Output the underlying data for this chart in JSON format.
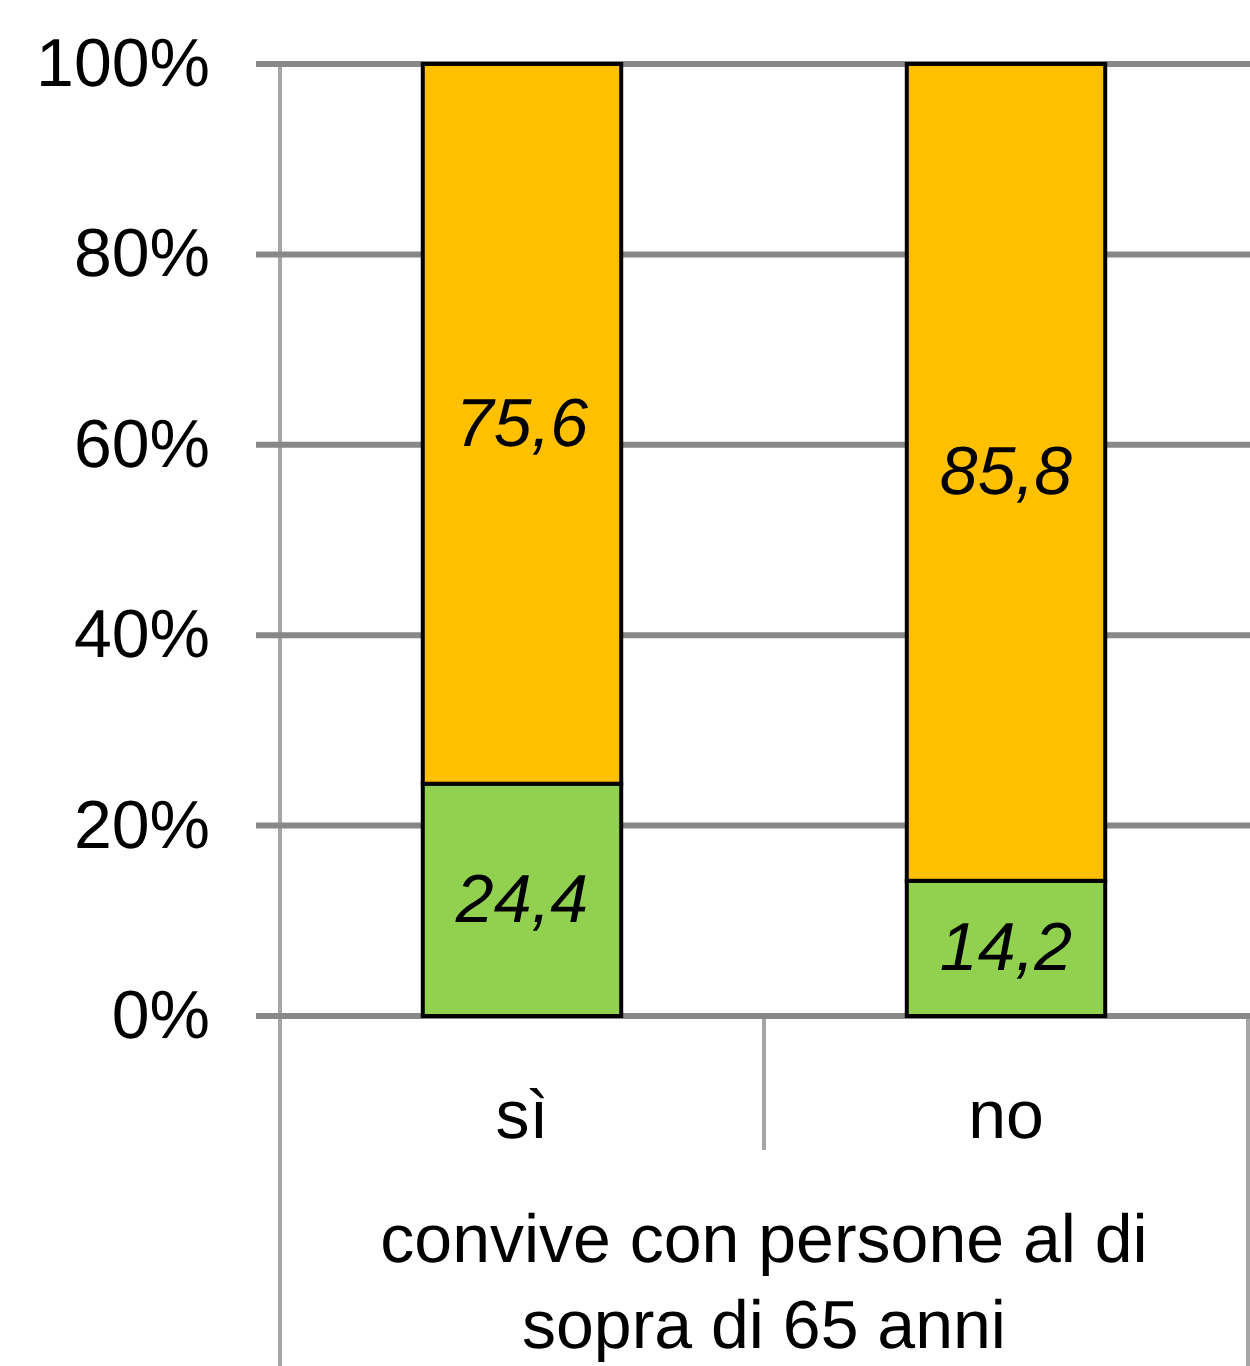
{
  "chart_data": {
    "type": "bar",
    "stacked": true,
    "categories": [
      "sì",
      "no"
    ],
    "series": [
      {
        "color": "#92d050",
        "values": [
          24.4,
          14.2
        ],
        "value_labels": [
          "24,4",
          "14,2"
        ]
      },
      {
        "color": "#ffc000",
        "values": [
          75.6,
          85.8
        ],
        "value_labels": [
          "75,6",
          "85,8"
        ]
      }
    ],
    "xlabel": "convive con persone al di sopra di 65 anni",
    "ylim": [
      0,
      100
    ],
    "yticks": [
      {
        "value": 0,
        "label": "0%"
      },
      {
        "value": 20,
        "label": "20%"
      },
      {
        "value": 40,
        "label": "40%"
      },
      {
        "value": 60,
        "label": "60%"
      },
      {
        "value": 80,
        "label": "80%"
      },
      {
        "value": 100,
        "label": "100%"
      }
    ],
    "grid": "y"
  }
}
